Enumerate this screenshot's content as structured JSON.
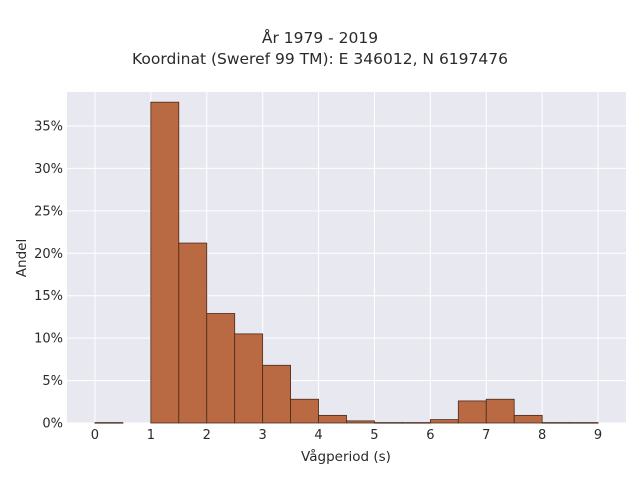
{
  "chart_data": {
    "type": "bar",
    "title": [
      "År 1979 - 2019",
      "Koordinat (Sweref 99 TM): E 346012, N 6197476"
    ],
    "xlabel": "Vågperiod (s)",
    "ylabel": "Andel",
    "xlim": [
      -0.5,
      9.5
    ],
    "ylim": [
      0,
      39
    ],
    "x_ticks": [
      0,
      1,
      2,
      3,
      4,
      5,
      6,
      7,
      8,
      9
    ],
    "y_ticks": [
      0,
      5,
      10,
      15,
      20,
      25,
      30,
      35
    ],
    "y_tick_suffix": "%",
    "grid": true,
    "bin_width": 0.5,
    "bins": [
      {
        "start": 0.0,
        "value": 0.05
      },
      {
        "start": 0.5,
        "value": 0.0
      },
      {
        "start": 1.0,
        "value": 37.8
      },
      {
        "start": 1.5,
        "value": 21.2
      },
      {
        "start": 2.0,
        "value": 12.9
      },
      {
        "start": 2.5,
        "value": 10.5
      },
      {
        "start": 3.0,
        "value": 6.8
      },
      {
        "start": 3.5,
        "value": 2.8
      },
      {
        "start": 4.0,
        "value": 0.9
      },
      {
        "start": 4.5,
        "value": 0.25
      },
      {
        "start": 5.0,
        "value": 0.05
      },
      {
        "start": 5.5,
        "value": 0.05
      },
      {
        "start": 6.0,
        "value": 0.4
      },
      {
        "start": 6.5,
        "value": 2.6
      },
      {
        "start": 7.0,
        "value": 2.8
      },
      {
        "start": 7.5,
        "value": 0.9
      },
      {
        "start": 8.0,
        "value": 0.05
      },
      {
        "start": 8.5,
        "value": 0.05
      }
    ],
    "colors": {
      "bar_fill": "#b96a42",
      "bar_edge": "#4a2a1a",
      "plot_bg": "#e8e8f0",
      "grid": "#ffffff"
    }
  }
}
